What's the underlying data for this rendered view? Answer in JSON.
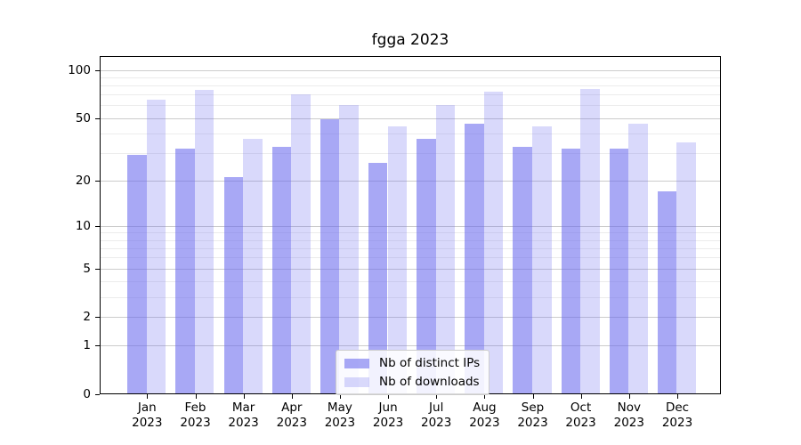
{
  "chart_data": {
    "type": "bar",
    "title": "fgga 2023",
    "categories": [
      "Jan",
      "Feb",
      "Mar",
      "Apr",
      "May",
      "Jun",
      "Jul",
      "Aug",
      "Sep",
      "Oct",
      "Nov",
      "Dec"
    ],
    "x_tick_second_line": "2023",
    "series": [
      {
        "name": "Nb of distinct IPs",
        "color": "rgba(102,102,238,0.57)",
        "values": [
          29,
          32,
          21,
          33,
          49,
          26,
          37,
          46,
          33,
          32,
          32,
          17
        ]
      },
      {
        "name": "Nb of downloads",
        "color": "rgba(102,102,238,0.25)",
        "values": [
          65,
          75,
          37,
          70,
          60,
          44,
          60,
          73,
          44,
          76,
          46,
          35
        ]
      }
    ],
    "yscale": "log1p",
    "ylim": [
      0,
      122
    ],
    "y_major_ticks": [
      100,
      50,
      20,
      10,
      5,
      2,
      1,
      0
    ],
    "y_minor_gridlines": [
      3,
      4,
      6,
      7,
      8,
      9,
      30,
      40,
      60,
      70,
      80,
      90
    ],
    "grid": true,
    "legend_position": "lower center",
    "colors": {
      "bar_distinct_ips": "#a8a8f2",
      "bar_downloads": "#d9d9fa",
      "grid_major": "#cccccc",
      "grid_minor": "#ececec",
      "axis": "#000000"
    }
  }
}
